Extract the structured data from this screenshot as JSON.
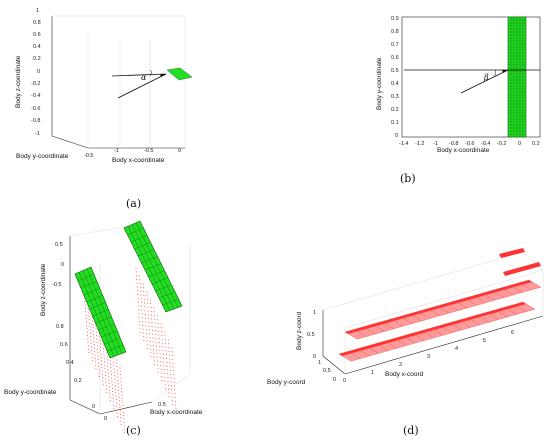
{
  "panels": {
    "a": {
      "caption": "(a)",
      "zlabel": "Body z-coordinate",
      "ylabel": "Body y-coordinate",
      "xlabel": "Body x-coordinate",
      "zticks": [
        "1",
        "0.8",
        "0.6",
        "0.4",
        "0.2",
        "0",
        "-0.2",
        "-0.4",
        "-0.6",
        "-0.8",
        "-1"
      ],
      "xticks": [
        "-1",
        "-0.5",
        "0"
      ],
      "yticks": [
        "-0.5"
      ],
      "angle": "α"
    },
    "b": {
      "caption": "(b)",
      "ylabel": "Body y-coordinate",
      "xlabel": "Body x-coordinate",
      "yticks": [
        "0.9",
        "0.8",
        "0.7",
        "0.6",
        "0.5",
        "0.4",
        "0.3",
        "0.2",
        "0.1",
        "0"
      ],
      "xticks": [
        "-1.4",
        "-1.2",
        "-1",
        "-0.8",
        "-0.6",
        "-0.4",
        "-0.2",
        "0",
        "0.2"
      ],
      "angle": "β"
    },
    "c": {
      "caption": "(c)",
      "zlabel": "Body z-coordinate",
      "ylabel": "Body y-coordinate",
      "xlabel": "Body x-coordinate",
      "zticks": [
        "0.5",
        "0",
        "-0.5"
      ],
      "yticks": [
        "0.8",
        "0.6",
        "0.4",
        "0.2",
        "0"
      ],
      "xticks": [
        "0",
        "0.5"
      ]
    },
    "d": {
      "caption": "(d)",
      "zlabel": "Body z-coord",
      "ylabel": "Body y-coord",
      "xlabel": "Body x-coord",
      "zticks": [
        "1",
        "0.5",
        "0"
      ],
      "yticks": [
        "1",
        "0.5",
        "0"
      ],
      "xticks": [
        "0",
        "1",
        "2",
        "3",
        "4",
        "5",
        "6"
      ]
    }
  },
  "colors": {
    "wing_green": "#22dd22",
    "wing_grid": "#0b5e0b",
    "wake_red": "#ff3333",
    "panel_pink": "#ff9a9a"
  }
}
